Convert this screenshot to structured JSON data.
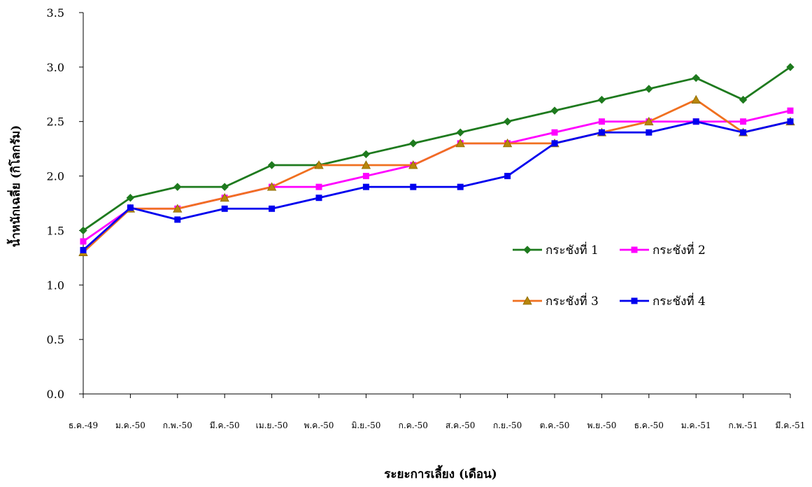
{
  "chart_data": {
    "type": "line",
    "title": "",
    "xlabel": "ระยะการเลี้ยง (เดือน)",
    "ylabel": "น้ำหนักเฉลี่ย (กิโลกรัม)",
    "ylim": [
      0,
      3.5
    ],
    "yticks": [
      "0.0",
      "0.5",
      "1.0",
      "1.5",
      "2.0",
      "2.5",
      "3.0",
      "3.5"
    ],
    "grid": false,
    "legend_position": "right-middle",
    "categories": [
      "ธ.ค.-49",
      "ม.ค.-50",
      "ก.พ.-50",
      "มี.ค.-50",
      "เม.ย.-50",
      "พ.ค.-50",
      "มิ.ย.-50",
      "ก.ค.-50",
      "ส.ค.-50",
      "ก.ย.-50",
      "ต.ค.-50",
      "พ.ย.-50",
      "ธ.ค.-50",
      "ม.ค.-51",
      "ก.พ.-51",
      "มี.ค.-51"
    ],
    "series": [
      {
        "name": "กระชังที่ 1",
        "color": "#1e7a1e",
        "marker": "diamond",
        "values": [
          1.5,
          1.8,
          1.9,
          1.9,
          2.1,
          2.1,
          2.2,
          2.3,
          2.4,
          2.5,
          2.6,
          2.7,
          2.8,
          2.9,
          2.7,
          3.0
        ]
      },
      {
        "name": "กระชังที่ 2",
        "color": "#ff00ff",
        "marker": "square",
        "values": [
          1.4,
          1.7,
          1.7,
          1.8,
          1.9,
          1.9,
          2.0,
          2.1,
          2.3,
          2.3,
          2.4,
          2.5,
          2.5,
          2.5,
          2.5,
          2.6
        ]
      },
      {
        "name": "กระชังที่ 3",
        "color": "#f07020",
        "marker": "triangle",
        "values": [
          1.3,
          1.7,
          1.7,
          1.8,
          1.9,
          2.1,
          2.1,
          2.1,
          2.3,
          2.3,
          2.3,
          2.4,
          2.5,
          2.7,
          2.4,
          2.5
        ]
      },
      {
        "name": "กระชังที่ 4",
        "color": "#0000ee",
        "marker": "square",
        "values": [
          1.32,
          1.71,
          1.6,
          1.7,
          1.7,
          1.8,
          1.9,
          1.9,
          1.9,
          2.0,
          2.3,
          2.4,
          2.4,
          2.5,
          2.4,
          2.5
        ]
      }
    ]
  }
}
